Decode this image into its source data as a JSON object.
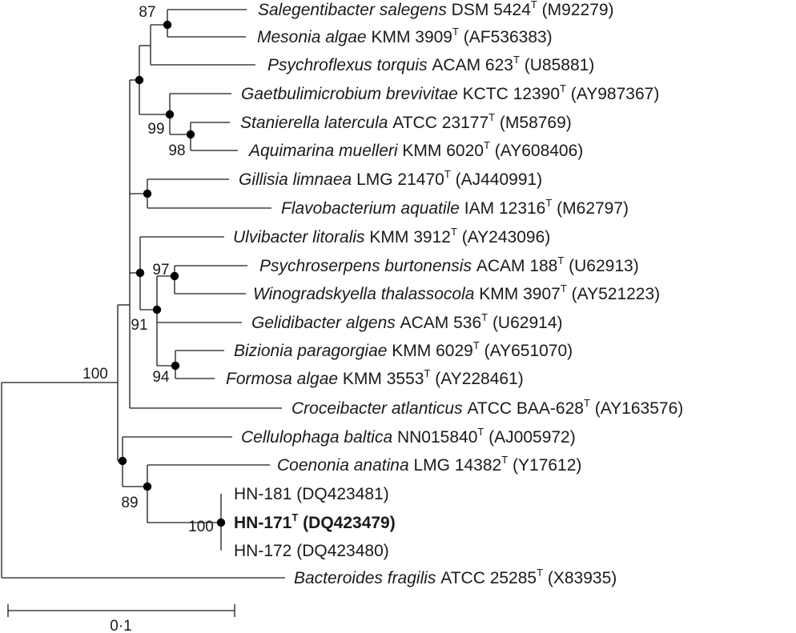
{
  "tree": {
    "leaves": [
      {
        "id": "salegens",
        "genus_species": "Salegentibacter salegens",
        "strain": "DSM 5424",
        "type_strain": true,
        "accession": "(M92279)"
      },
      {
        "id": "mesonia",
        "genus_species": "Mesonia algae",
        "strain": "KMM 3909",
        "type_strain": true,
        "accession": "(AF536383)"
      },
      {
        "id": "psychroflexus",
        "genus_species": "Psychroflexus torquis",
        "strain": "ACAM 623",
        "type_strain": true,
        "accession": "(U85881)"
      },
      {
        "id": "gaetbulimicrobium",
        "genus_species": "Gaetbulimicrobium brevivitae",
        "strain": "KCTC 12390",
        "type_strain": true,
        "accession": "(AY987367)"
      },
      {
        "id": "stanierella",
        "genus_species": "Stanierella latercula",
        "strain": "ATCC 23177",
        "type_strain": true,
        "accession": "(M58769)"
      },
      {
        "id": "aquimarina",
        "genus_species": "Aquimarina muelleri",
        "strain": "KMM 6020",
        "type_strain": true,
        "accession": "(AY608406)"
      },
      {
        "id": "gillisia",
        "genus_species": "Gillisia limnaea",
        "strain": "LMG 21470",
        "type_strain": true,
        "accession": "(AJ440991)"
      },
      {
        "id": "flavobacterium",
        "genus_species": "Flavobacterium aquatile",
        "strain": "IAM 12316",
        "type_strain": true,
        "accession": "(M62797)"
      },
      {
        "id": "ulvibacter",
        "genus_species": "Ulvibacter litoralis",
        "strain": "KMM 3912",
        "type_strain": true,
        "accession": "(AY243096)"
      },
      {
        "id": "psychroserpens",
        "genus_species": "Psychroserpens burtonensis",
        "strain": "ACAM 188",
        "type_strain": true,
        "accession": "(U62913)"
      },
      {
        "id": "winogradskyella",
        "genus_species": "Winogradskyella thalassocola",
        "strain": "KMM 3907",
        "type_strain": true,
        "accession": "(AY521223)"
      },
      {
        "id": "gelidibacter",
        "genus_species": "Gelidibacter algens",
        "strain": "ACAM 536",
        "type_strain": true,
        "accession": "(U62914)"
      },
      {
        "id": "bizionia",
        "genus_species": "Bizionia paragorgiae",
        "strain": "KMM 6029",
        "type_strain": true,
        "accession": "(AY651070)"
      },
      {
        "id": "formosa",
        "genus_species": "Formosa algae",
        "strain": "KMM 3553",
        "type_strain": true,
        "accession": "(AY228461)"
      },
      {
        "id": "croceibacter",
        "genus_species": "Croceibacter atlanticus",
        "strain": "ATCC BAA-628",
        "type_strain": true,
        "accession": "(AY163576)"
      },
      {
        "id": "cellulophaga",
        "genus_species": "Cellulophaga baltica",
        "strain": "NN015840",
        "type_strain": true,
        "accession": "(AJ005972)"
      },
      {
        "id": "coenonia",
        "genus_species": "Coenonia anatina",
        "strain": "LMG 14382",
        "type_strain": true,
        "accession": "(Y17612)"
      },
      {
        "id": "hn181",
        "genus_species": "",
        "strain": "HN-181",
        "type_strain": false,
        "accession": "(DQ423481)"
      },
      {
        "id": "hn171",
        "genus_species": "",
        "strain": "HN-171",
        "type_strain": true,
        "accession": "(DQ423479)",
        "bold": true
      },
      {
        "id": "hn172",
        "genus_species": "",
        "strain": "HN-172",
        "type_strain": false,
        "accession": "(DQ423480)"
      },
      {
        "id": "bacteroides",
        "genus_species": "Bacteroides fragilis",
        "strain": "ATCC 25285",
        "type_strain": true,
        "accession": "(X83935)"
      }
    ],
    "type_strain_marker": "T",
    "bootstrap_values": {
      "salegens_mesonia": "87",
      "gaet_stan_aqui": "99",
      "stan_aqui": "98",
      "psychro_wino": "97",
      "gelidibacter_group": "91",
      "bizionia_formosa": "94",
      "ingroup_root": "100",
      "coenonia_hn": "89",
      "hn_strains": "100"
    },
    "scale_bar_label": "0·1",
    "bootstrap_dot_color": "#000000",
    "line_color": "#1a1a1a"
  }
}
